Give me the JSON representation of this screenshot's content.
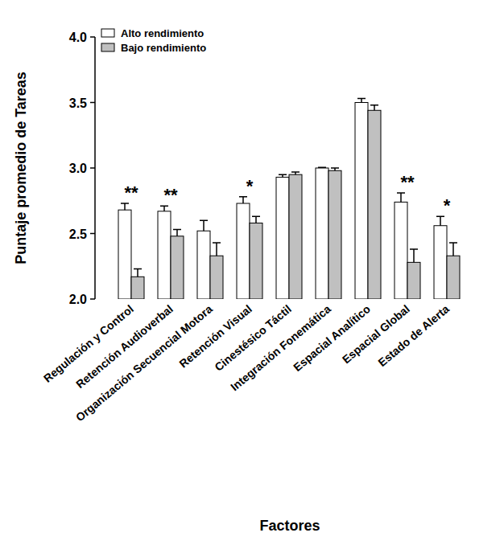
{
  "chart_data": {
    "type": "bar",
    "x_label": "Factores",
    "y_label": "Puntaje promedio de Tareas",
    "categories": [
      "Regulación y Control",
      "Retención Audioverbal",
      "Organización Secuencial Motora",
      "Retención Visual",
      "Cinestésico Táctil",
      "Integración Fonemática",
      "Espacial Analítico",
      "Espacial Global",
      "Estado de Alerta"
    ],
    "series": [
      {
        "name": "Alto rendimiento",
        "color": "#ffffff",
        "values": [
          2.68,
          2.67,
          2.52,
          2.73,
          2.93,
          3.0,
          3.5,
          2.74,
          2.56
        ],
        "errors": [
          0.05,
          0.04,
          0.08,
          0.05,
          0.02,
          0.005,
          0.03,
          0.07,
          0.07
        ]
      },
      {
        "name": "Bajo rendimiento",
        "color": "#c0c0c0",
        "values": [
          2.17,
          2.48,
          2.33,
          2.58,
          2.95,
          2.98,
          3.44,
          2.28,
          2.33
        ],
        "errors": [
          0.06,
          0.05,
          0.1,
          0.05,
          0.02,
          0.02,
          0.04,
          0.1,
          0.1
        ]
      }
    ],
    "significance": [
      "**",
      "**",
      null,
      "*",
      null,
      null,
      null,
      "**",
      "*"
    ],
    "ylim": [
      2.0,
      4.0
    ],
    "yticks": [
      {
        "value": 2.0,
        "label": "2.0"
      },
      {
        "value": 2.5,
        "label": "2.5"
      },
      {
        "value": 3.0,
        "label": "3.0"
      },
      {
        "value": 3.5,
        "label": "3.5"
      },
      {
        "value": 4.0,
        "label": "4.0"
      }
    ],
    "legend": "top-left",
    "grid": false
  }
}
